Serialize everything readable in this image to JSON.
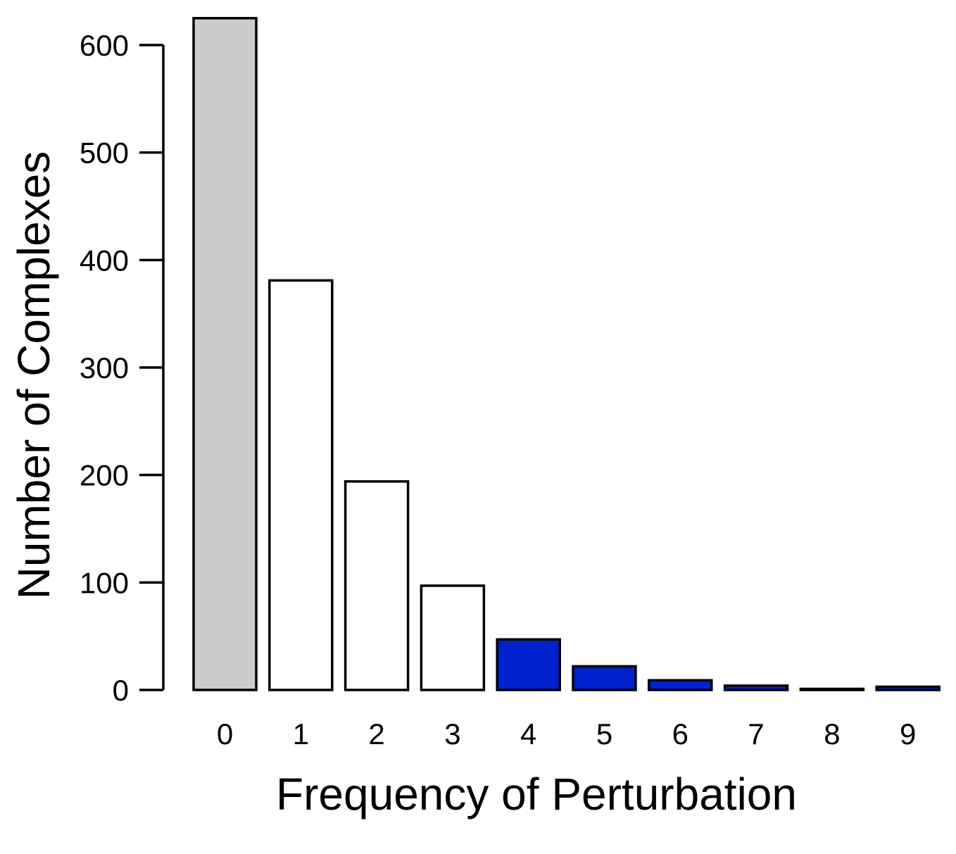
{
  "chart_data": {
    "type": "bar",
    "title": "",
    "xlabel": "Frequency of Perturbation",
    "ylabel": "Number of Complexes",
    "categories": [
      "0",
      "1",
      "2",
      "3",
      "4",
      "5",
      "6",
      "7",
      "8",
      "9"
    ],
    "values": [
      625,
      381,
      194,
      97,
      47,
      22,
      9,
      4,
      1,
      3
    ],
    "bar_colors": [
      "#cccccc",
      "#ffffff",
      "#ffffff",
      "#ffffff",
      "#0022cc",
      "#0022cc",
      "#0022cc",
      "#0022cc",
      "#0022cc",
      "#0022cc"
    ],
    "bar_edge_color": "#000000",
    "ylim": [
      0,
      600
    ],
    "yticks": [
      0,
      100,
      200,
      300,
      400,
      500,
      600
    ],
    "grid": false,
    "legend": "none"
  }
}
